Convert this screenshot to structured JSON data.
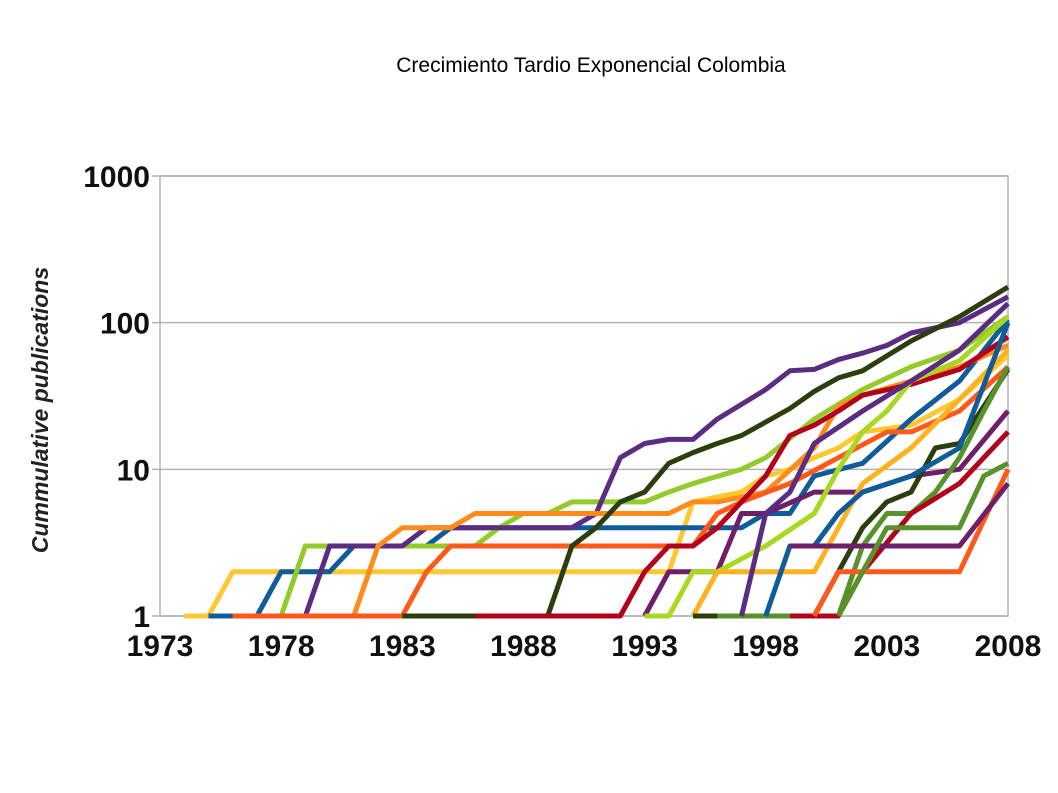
{
  "chart_data": {
    "type": "line",
    "title": "Crecimiento Tardio Exponencial Colombia",
    "xlabel": "",
    "ylabel": "Cummulative publications",
    "xlim": [
      1973,
      2008
    ],
    "ylim": [
      1,
      1000
    ],
    "yscale": "log",
    "grid": "horizontal",
    "legend": "none",
    "x_ticks": [
      "1973",
      "1978",
      "1983",
      "1988",
      "1993",
      "1998",
      "2003",
      "2008"
    ],
    "y_ticks": [
      "1",
      "10",
      "100",
      "1000"
    ],
    "series": [
      {
        "color": "#FFC82E",
        "x": [
          1974,
          1975,
          1976,
          1977,
          1978,
          1982,
          1985,
          1988,
          1992,
          1993,
          1994,
          1995,
          1997,
          1998,
          1999,
          2000,
          2001,
          2002,
          2004,
          2006,
          2008
        ],
        "y": [
          1,
          1,
          2,
          2,
          2,
          2,
          2,
          2,
          2,
          2,
          2,
          6,
          7,
          9,
          10,
          12,
          14,
          18,
          20,
          30,
          60
        ]
      },
      {
        "color": "#0F5C9A",
        "x": [
          1975,
          1977,
          1978,
          1979,
          1980,
          1981,
          1983,
          1984,
          1985,
          1990,
          1997,
          1998,
          1999,
          2000,
          2002,
          2004,
          2006,
          2008
        ],
        "y": [
          1,
          1,
          2,
          2,
          2,
          3,
          3,
          3,
          4,
          4,
          4,
          5,
          5,
          9,
          11,
          22,
          40,
          105
        ]
      },
      {
        "color": "#93CC2A",
        "x": [
          1978,
          1979,
          1980,
          1981,
          1985,
          1986,
          1987,
          1988,
          1989,
          1990,
          1993,
          1994,
          1995,
          1997,
          1998,
          2000,
          2002,
          2004,
          2006,
          2008
        ],
        "y": [
          1,
          3,
          3,
          3,
          3,
          3,
          4,
          5,
          5,
          6,
          6,
          7,
          8,
          10,
          12,
          22,
          35,
          50,
          65,
          110
        ]
      },
      {
        "color": "#5A2C82",
        "x": [
          1979,
          1980,
          1982,
          1983,
          1984,
          1990,
          1991,
          1992,
          1993,
          1994,
          1995,
          1996,
          1998,
          1999,
          2000,
          2001,
          2002,
          2003,
          2004,
          2006,
          2008
        ],
        "y": [
          1,
          3,
          3,
          3,
          4,
          4,
          5,
          12,
          15,
          16,
          16,
          22,
          35,
          47,
          48,
          56,
          62,
          70,
          85,
          100,
          150
        ]
      },
      {
        "color": "#FF8C1A",
        "x": [
          1981,
          1982,
          1983,
          1984,
          1985,
          1986,
          1994,
          1995,
          1996,
          1998,
          2000,
          2001,
          2002,
          2004,
          2006,
          2008
        ],
        "y": [
          1,
          3,
          4,
          4,
          4,
          5,
          5,
          6,
          6,
          7,
          14,
          27,
          32,
          40,
          50,
          70
        ]
      },
      {
        "color": "#FF5A1A",
        "x": [
          1976,
          1983,
          1984,
          1985,
          1986,
          1987,
          1988,
          1993,
          1995,
          1996,
          1997,
          1999,
          2001,
          2003,
          2004,
          2006,
          2008
        ],
        "y": [
          1,
          1,
          2,
          3,
          3,
          3,
          3,
          3,
          3,
          5,
          6,
          8,
          12,
          18,
          18,
          25,
          50
        ]
      },
      {
        "color": "#2D3E0E",
        "x": [
          1983,
          1986,
          1989,
          1990,
          1991,
          1992,
          1993,
          1994,
          1995,
          1996,
          1997,
          1998,
          1999,
          2000,
          2001,
          2002,
          2004,
          2006,
          2008
        ],
        "y": [
          1,
          1,
          1,
          3,
          4,
          6,
          7,
          11,
          13,
          15,
          17,
          21,
          26,
          34,
          42,
          47,
          75,
          110,
          175
        ]
      },
      {
        "color": "#B3001B",
        "x": [
          1986,
          1990,
          1992,
          1993,
          1994,
          1995,
          1996,
          1997,
          1998,
          1999,
          2000,
          2001,
          2002,
          2004,
          2006,
          2008
        ],
        "y": [
          1,
          1,
          1,
          2,
          3,
          3,
          4,
          6,
          9,
          17,
          20,
          25,
          32,
          38,
          48,
          80
        ]
      },
      {
        "color": "#6F1E6A",
        "x": [
          1993,
          1994,
          1996,
          1997,
          1998,
          2000,
          2002,
          2004,
          2006,
          2008
        ],
        "y": [
          1,
          2,
          2,
          5,
          5,
          7,
          7,
          9,
          10,
          25
        ]
      },
      {
        "color": "#A8D81F",
        "x": [
          1993,
          1994,
          1995,
          1996,
          1998,
          2000,
          2001,
          2002,
          2003,
          2004,
          2006,
          2008
        ],
        "y": [
          1,
          1,
          2,
          2,
          3,
          5,
          10,
          18,
          25,
          40,
          55,
          110
        ]
      },
      {
        "color": "#FFB21F",
        "x": [
          1995,
          1996,
          1997,
          1999,
          2000,
          2001,
          2002,
          2004,
          2006,
          2008
        ],
        "y": [
          1,
          2,
          2,
          2,
          2,
          4,
          8,
          14,
          30,
          65
        ]
      },
      {
        "color": "#2D3E0E",
        "x": [
          1995,
          1999,
          2000,
          2001,
          2002,
          2003,
          2004,
          2005,
          2006,
          2008
        ],
        "y": [
          1,
          1,
          1,
          2,
          4,
          6,
          7,
          14,
          15,
          48
        ]
      },
      {
        "color": "#57922A",
        "x": [
          1996,
          1999,
          2000,
          2001,
          2002,
          2003,
          2004,
          2005,
          2006,
          2007,
          2008
        ],
        "y": [
          1,
          1,
          1,
          1,
          3,
          5,
          5,
          7,
          12,
          25,
          50
        ]
      },
      {
        "color": "#5A2C82",
        "x": [
          1997,
          1998,
          1999,
          2000,
          2002,
          2004,
          2006,
          2008
        ],
        "y": [
          1,
          5,
          7,
          15,
          25,
          40,
          65,
          135
        ]
      },
      {
        "color": "#0F5C9A",
        "x": [
          1998,
          1999,
          2000,
          2001,
          2002,
          2004,
          2006,
          2008
        ],
        "y": [
          1,
          3,
          3,
          5,
          7,
          9,
          14,
          100
        ]
      },
      {
        "color": "#B3001B",
        "x": [
          1999,
          2001,
          2002,
          2004,
          2006,
          2008
        ],
        "y": [
          1,
          1,
          2,
          5,
          8,
          18
        ]
      },
      {
        "color": "#FF5A1A",
        "x": [
          2000,
          2001,
          2002,
          2006,
          2008
        ],
        "y": [
          1,
          2,
          2,
          2,
          10
        ]
      },
      {
        "color": "#6F1E6A",
        "x": [
          1999,
          2000,
          2002,
          2006,
          2008
        ],
        "y": [
          3,
          3,
          3,
          3,
          8
        ]
      },
      {
        "color": "#57922A",
        "x": [
          2001,
          2002,
          2003,
          2006,
          2007,
          2008
        ],
        "y": [
          1,
          2,
          4,
          4,
          9,
          11
        ]
      }
    ]
  }
}
